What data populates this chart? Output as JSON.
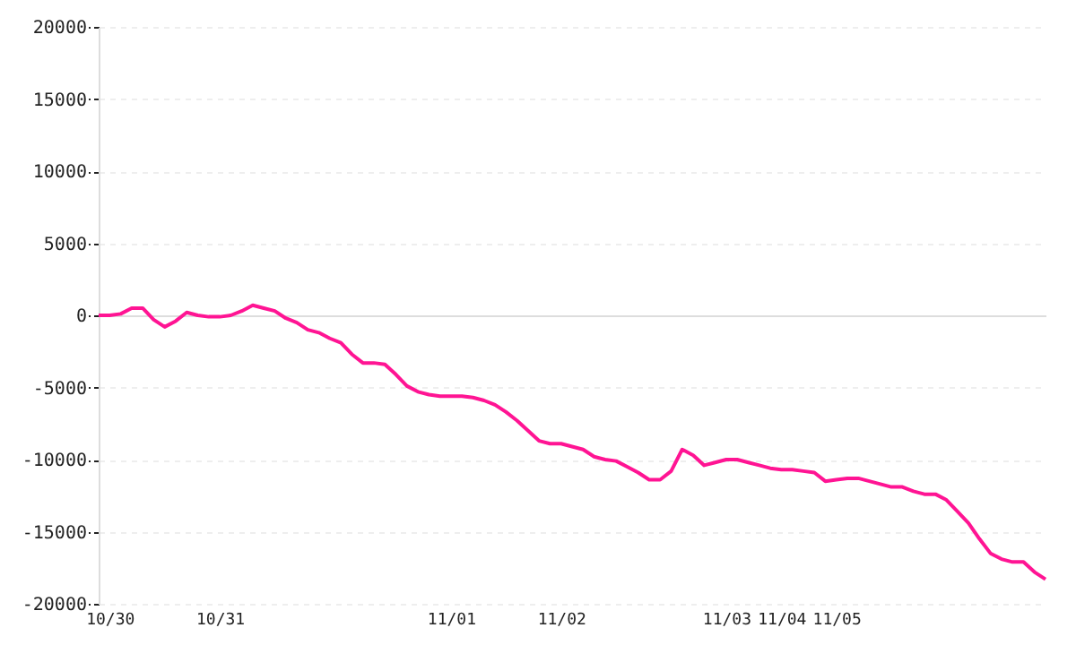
{
  "chart_data": {
    "type": "line",
    "categories": [
      null,
      "10/30",
      null,
      null,
      null,
      null,
      null,
      null,
      null,
      null,
      null,
      "10/31",
      null,
      null,
      null,
      null,
      null,
      null,
      null,
      null,
      null,
      null,
      null,
      null,
      null,
      null,
      null,
      null,
      null,
      null,
      null,
      null,
      "11/01",
      null,
      null,
      null,
      null,
      null,
      null,
      null,
      null,
      null,
      "11/02",
      null,
      null,
      null,
      null,
      null,
      null,
      null,
      null,
      null,
      null,
      null,
      null,
      null,
      null,
      "11/03",
      null,
      null,
      null,
      null,
      "11/04",
      null,
      null,
      null,
      null,
      "11/05",
      null,
      null,
      null,
      null,
      null,
      null,
      null,
      null,
      null,
      null,
      null,
      null,
      null,
      null,
      null,
      null,
      null,
      null,
      null
    ],
    "series": [
      {
        "color": "#ff1493",
        "values": [
          0,
          0,
          100,
          500,
          500,
          -300,
          -800,
          -400,
          200,
          0,
          -100,
          -100,
          0,
          300,
          700,
          500,
          300,
          -200,
          -500,
          -1000,
          -1200,
          -1600,
          -1900,
          -2700,
          -3300,
          -3300,
          -3400,
          -4100,
          -4900,
          -5300,
          -5500,
          -5600,
          -5600,
          -5600,
          -5700,
          -5900,
          -6200,
          -6700,
          -7300,
          -8000,
          -8700,
          -8900,
          -8900,
          -9100,
          -9300,
          -9800,
          -10000,
          -10100,
          -10500,
          -10900,
          -11400,
          -11400,
          -10800,
          -9300,
          -9700,
          -10400,
          -10200,
          -10000,
          -10000,
          -10200,
          -10400,
          -10600,
          -10700,
          -10700,
          -10800,
          -10900,
          -11500,
          -11400,
          -11300,
          -11300,
          -11500,
          -11700,
          -11900,
          -11900,
          -12200,
          -12400,
          -12400,
          -12800,
          -13600,
          -14400,
          -15500,
          -16500,
          -16900,
          -17100,
          -17100,
          -17800,
          -18300
        ]
      }
    ],
    "ylim": [
      -20000,
      20000
    ],
    "yticks": [
      -20000,
      -15000,
      -10000,
      -5000,
      0,
      5000,
      10000,
      15000,
      20000
    ],
    "grid": "y"
  }
}
